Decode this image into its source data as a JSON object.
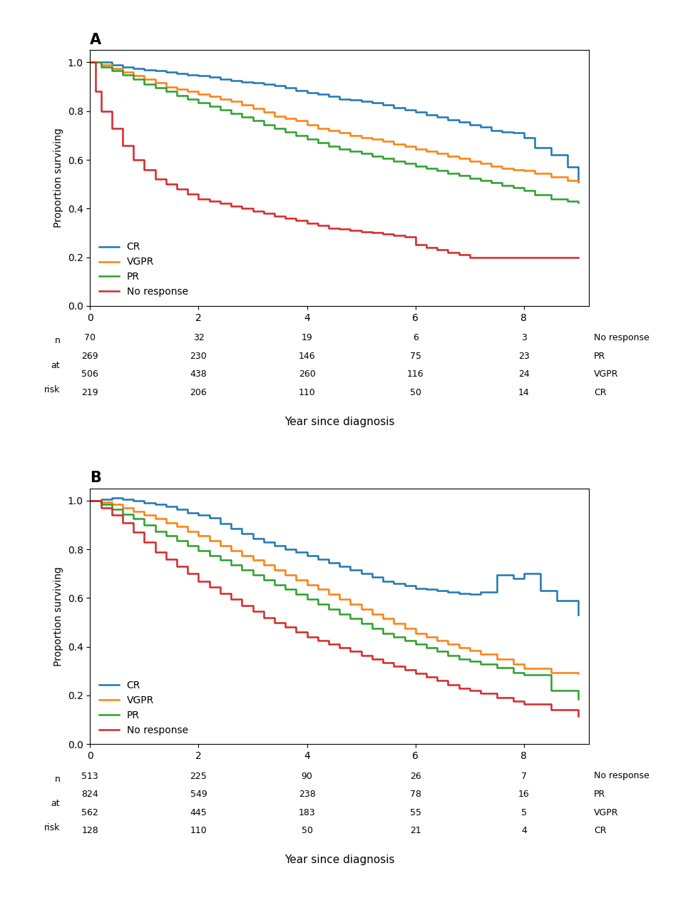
{
  "chart_data": [
    {
      "type": "step",
      "title": "A",
      "xlabel": "Year since diagnosis",
      "ylabel": "Proportion surviving",
      "xlim": [
        0,
        9.2
      ],
      "ylim": [
        0,
        1.05
      ],
      "xticks": [
        0,
        2,
        4,
        6,
        8
      ],
      "yticks": [
        {
          "value": 0.0,
          "label": "0.0"
        },
        0.2,
        0.4,
        0.6,
        0.8,
        {
          "value": 1.0,
          "label": "1.0"
        }
      ],
      "legend": "lower left",
      "series": [
        {
          "name": "CR",
          "x": [
            0,
            0.2,
            0.4,
            0.6,
            0.8,
            1.0,
            1.2,
            1.4,
            1.6,
            1.8,
            2.0,
            2.2,
            2.4,
            2.6,
            2.8,
            3.0,
            3.2,
            3.4,
            3.6,
            3.8,
            4.0,
            4.2,
            4.4,
            4.6,
            4.8,
            5.0,
            5.2,
            5.4,
            5.6,
            5.8,
            6.0,
            6.2,
            6.4,
            6.6,
            6.8,
            7.0,
            7.2,
            7.4,
            7.6,
            7.8,
            8.0,
            8.2,
            8.5,
            8.8,
            9.0
          ],
          "values": [
            1.0,
            1.0,
            0.99,
            0.98,
            0.975,
            0.97,
            0.965,
            0.96,
            0.955,
            0.95,
            0.945,
            0.94,
            0.93,
            0.925,
            0.92,
            0.915,
            0.91,
            0.905,
            0.895,
            0.885,
            0.875,
            0.87,
            0.86,
            0.85,
            0.845,
            0.84,
            0.835,
            0.825,
            0.815,
            0.805,
            0.795,
            0.785,
            0.775,
            0.765,
            0.755,
            0.745,
            0.735,
            0.72,
            0.715,
            0.71,
            0.69,
            0.65,
            0.62,
            0.57,
            0.51
          ]
        },
        {
          "name": "VGPR",
          "x": [
            0,
            0.2,
            0.4,
            0.6,
            0.8,
            1.0,
            1.2,
            1.4,
            1.6,
            1.8,
            2.0,
            2.2,
            2.4,
            2.6,
            2.8,
            3.0,
            3.2,
            3.4,
            3.6,
            3.8,
            4.0,
            4.2,
            4.4,
            4.6,
            4.8,
            5.0,
            5.2,
            5.4,
            5.6,
            5.8,
            6.0,
            6.2,
            6.4,
            6.6,
            6.8,
            7.0,
            7.2,
            7.4,
            7.6,
            7.8,
            8.0,
            8.2,
            8.5,
            8.8,
            9.0
          ],
          "values": [
            1.0,
            0.99,
            0.975,
            0.96,
            0.945,
            0.93,
            0.915,
            0.9,
            0.89,
            0.88,
            0.87,
            0.86,
            0.85,
            0.84,
            0.825,
            0.81,
            0.795,
            0.78,
            0.77,
            0.76,
            0.745,
            0.73,
            0.72,
            0.71,
            0.7,
            0.69,
            0.685,
            0.675,
            0.665,
            0.655,
            0.645,
            0.635,
            0.625,
            0.615,
            0.605,
            0.595,
            0.585,
            0.575,
            0.565,
            0.56,
            0.555,
            0.545,
            0.53,
            0.515,
            0.51
          ]
        },
        {
          "name": "PR",
          "x": [
            0,
            0.2,
            0.4,
            0.6,
            0.8,
            1.0,
            1.2,
            1.4,
            1.6,
            1.8,
            2.0,
            2.2,
            2.4,
            2.6,
            2.8,
            3.0,
            3.2,
            3.4,
            3.6,
            3.8,
            4.0,
            4.2,
            4.4,
            4.6,
            4.8,
            5.0,
            5.2,
            5.4,
            5.6,
            5.8,
            6.0,
            6.2,
            6.4,
            6.6,
            6.8,
            7.0,
            7.2,
            7.4,
            7.6,
            7.8,
            8.0,
            8.2,
            8.5,
            8.8,
            9.0
          ],
          "values": [
            1.0,
            0.98,
            0.965,
            0.95,
            0.93,
            0.91,
            0.895,
            0.88,
            0.865,
            0.85,
            0.835,
            0.82,
            0.805,
            0.79,
            0.775,
            0.76,
            0.745,
            0.73,
            0.715,
            0.7,
            0.685,
            0.67,
            0.655,
            0.645,
            0.635,
            0.625,
            0.615,
            0.605,
            0.595,
            0.585,
            0.575,
            0.565,
            0.555,
            0.545,
            0.535,
            0.525,
            0.515,
            0.505,
            0.495,
            0.485,
            0.475,
            0.455,
            0.44,
            0.43,
            0.425
          ]
        },
        {
          "name": "No response",
          "x": [
            0,
            0.1,
            0.2,
            0.4,
            0.6,
            0.8,
            1.0,
            1.2,
            1.4,
            1.6,
            1.8,
            2.0,
            2.2,
            2.4,
            2.6,
            2.8,
            3.0,
            3.2,
            3.4,
            3.6,
            3.8,
            4.0,
            4.2,
            4.4,
            4.6,
            4.8,
            5.0,
            5.2,
            5.4,
            5.6,
            5.8,
            6.0,
            6.2,
            6.4,
            6.6,
            6.8,
            7.0,
            7.5,
            8.0,
            8.5,
            9.0
          ],
          "values": [
            1.0,
            0.88,
            0.8,
            0.73,
            0.66,
            0.6,
            0.56,
            0.52,
            0.5,
            0.48,
            0.46,
            0.44,
            0.43,
            0.42,
            0.41,
            0.4,
            0.39,
            0.38,
            0.37,
            0.36,
            0.35,
            0.34,
            0.33,
            0.32,
            0.315,
            0.31,
            0.305,
            0.3,
            0.295,
            0.29,
            0.285,
            0.25,
            0.24,
            0.23,
            0.22,
            0.21,
            0.2,
            0.2,
            0.2,
            0.2,
            0.2
          ]
        }
      ],
      "risk_table": {
        "label": [
          "n",
          "at",
          "risk"
        ],
        "times": [
          0,
          2,
          4,
          6,
          8
        ],
        "rows": [
          {
            "name": "No response",
            "values": [
              70,
              32,
              19,
              6,
              3
            ]
          },
          {
            "name": "PR",
            "values": [
              269,
              230,
              146,
              75,
              23
            ]
          },
          {
            "name": "VGPR",
            "values": [
              506,
              438,
              260,
              116,
              24
            ]
          },
          {
            "name": "CR",
            "values": [
              219,
              206,
              110,
              50,
              14
            ]
          }
        ]
      }
    },
    {
      "type": "step",
      "title": "B",
      "xlabel": "Year since diagnosis",
      "ylabel": "Proportion surviving",
      "xlim": [
        0,
        9.2
      ],
      "ylim": [
        0,
        1.05
      ],
      "xticks": [
        0,
        2,
        4,
        6,
        8
      ],
      "yticks": [
        {
          "value": 0.0,
          "label": "0.0"
        },
        0.2,
        0.4,
        0.6,
        0.8,
        {
          "value": 1.0,
          "label": "1.0"
        }
      ],
      "legend": "lower left",
      "series": [
        {
          "name": "CR",
          "x": [
            0,
            0.2,
            0.4,
            0.6,
            0.8,
            1.0,
            1.2,
            1.4,
            1.6,
            1.8,
            2.0,
            2.2,
            2.4,
            2.6,
            2.8,
            3.0,
            3.2,
            3.4,
            3.6,
            3.8,
            4.0,
            4.2,
            4.4,
            4.6,
            4.8,
            5.0,
            5.2,
            5.4,
            5.6,
            5.8,
            6.0,
            6.2,
            6.4,
            6.6,
            6.8,
            7.0,
            7.2,
            7.5,
            7.8,
            8.0,
            8.3,
            8.6,
            9.0
          ],
          "values": [
            1.0,
            1.005,
            1.01,
            1.005,
            1.0,
            0.99,
            0.985,
            0.975,
            0.965,
            0.95,
            0.94,
            0.93,
            0.905,
            0.885,
            0.865,
            0.845,
            0.83,
            0.815,
            0.8,
            0.79,
            0.775,
            0.76,
            0.745,
            0.73,
            0.715,
            0.7,
            0.685,
            0.67,
            0.66,
            0.65,
            0.64,
            0.635,
            0.63,
            0.625,
            0.62,
            0.615,
            0.625,
            0.695,
            0.68,
            0.7,
            0.63,
            0.59,
            0.53
          ]
        },
        {
          "name": "VGPR",
          "x": [
            0,
            0.2,
            0.4,
            0.6,
            0.8,
            1.0,
            1.2,
            1.4,
            1.6,
            1.8,
            2.0,
            2.2,
            2.4,
            2.6,
            2.8,
            3.0,
            3.2,
            3.4,
            3.6,
            3.8,
            4.0,
            4.2,
            4.4,
            4.6,
            4.8,
            5.0,
            5.2,
            5.4,
            5.6,
            5.8,
            6.0,
            6.2,
            6.4,
            6.6,
            6.8,
            7.0,
            7.2,
            7.5,
            7.8,
            8.0,
            8.5,
            9.0
          ],
          "values": [
            1.0,
            0.995,
            0.985,
            0.97,
            0.955,
            0.94,
            0.925,
            0.91,
            0.895,
            0.875,
            0.855,
            0.835,
            0.815,
            0.795,
            0.775,
            0.755,
            0.735,
            0.715,
            0.695,
            0.675,
            0.655,
            0.635,
            0.615,
            0.595,
            0.575,
            0.555,
            0.535,
            0.515,
            0.495,
            0.475,
            0.455,
            0.44,
            0.425,
            0.41,
            0.395,
            0.385,
            0.37,
            0.35,
            0.33,
            0.31,
            0.295,
            0.29
          ]
        },
        {
          "name": "PR",
          "x": [
            0,
            0.2,
            0.4,
            0.6,
            0.8,
            1.0,
            1.2,
            1.4,
            1.6,
            1.8,
            2.0,
            2.2,
            2.4,
            2.6,
            2.8,
            3.0,
            3.2,
            3.4,
            3.6,
            3.8,
            4.0,
            4.2,
            4.4,
            4.6,
            4.8,
            5.0,
            5.2,
            5.4,
            5.6,
            5.8,
            6.0,
            6.2,
            6.4,
            6.6,
            6.8,
            7.0,
            7.2,
            7.5,
            7.8,
            8.0,
            8.5,
            9.0
          ],
          "values": [
            1.0,
            0.985,
            0.965,
            0.945,
            0.925,
            0.9,
            0.875,
            0.855,
            0.835,
            0.815,
            0.795,
            0.775,
            0.755,
            0.735,
            0.715,
            0.695,
            0.675,
            0.655,
            0.635,
            0.615,
            0.595,
            0.575,
            0.555,
            0.535,
            0.515,
            0.495,
            0.475,
            0.455,
            0.44,
            0.425,
            0.41,
            0.395,
            0.38,
            0.365,
            0.35,
            0.34,
            0.33,
            0.315,
            0.295,
            0.285,
            0.22,
            0.185
          ]
        },
        {
          "name": "No response",
          "x": [
            0,
            0.2,
            0.4,
            0.6,
            0.8,
            1.0,
            1.2,
            1.4,
            1.6,
            1.8,
            2.0,
            2.2,
            2.4,
            2.6,
            2.8,
            3.0,
            3.2,
            3.4,
            3.6,
            3.8,
            4.0,
            4.2,
            4.4,
            4.6,
            4.8,
            5.0,
            5.2,
            5.4,
            5.6,
            5.8,
            6.0,
            6.2,
            6.4,
            6.6,
            6.8,
            7.0,
            7.2,
            7.5,
            7.8,
            8.0,
            8.5,
            9.0
          ],
          "values": [
            1.0,
            0.97,
            0.94,
            0.91,
            0.87,
            0.83,
            0.79,
            0.76,
            0.73,
            0.7,
            0.67,
            0.645,
            0.62,
            0.595,
            0.57,
            0.545,
            0.52,
            0.5,
            0.48,
            0.46,
            0.44,
            0.425,
            0.41,
            0.395,
            0.38,
            0.365,
            0.35,
            0.335,
            0.32,
            0.305,
            0.29,
            0.275,
            0.26,
            0.245,
            0.23,
            0.22,
            0.21,
            0.19,
            0.175,
            0.165,
            0.14,
            0.115
          ]
        }
      ],
      "risk_table": {
        "label": [
          "n",
          "at",
          "risk"
        ],
        "times": [
          0,
          2,
          4,
          6,
          8
        ],
        "rows": [
          {
            "name": "No response",
            "values": [
              513,
              225,
              90,
              26,
              7
            ]
          },
          {
            "name": "PR",
            "values": [
              824,
              549,
              238,
              78,
              16
            ]
          },
          {
            "name": "VGPR",
            "values": [
              562,
              445,
              183,
              55,
              5
            ]
          },
          {
            "name": "CR",
            "values": [
              128,
              110,
              50,
              21,
              4
            ]
          }
        ]
      }
    }
  ]
}
